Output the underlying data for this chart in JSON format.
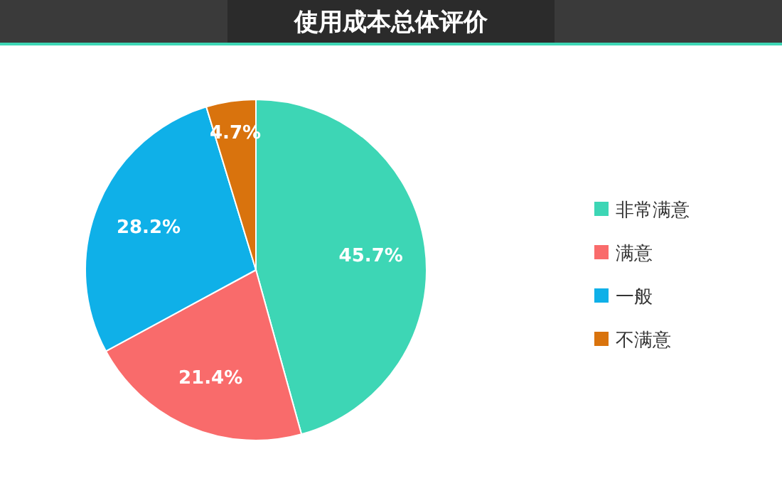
{
  "chart_data": {
    "type": "pie",
    "title": "使用成本总体评价",
    "categories": [
      "非常满意",
      "满意",
      "一般",
      "不满意"
    ],
    "values": [
      45.7,
      21.4,
      28.2,
      4.7
    ],
    "colors": [
      "#3dd6b5",
      "#f96b6b",
      "#0fb0e8",
      "#d9730d"
    ],
    "value_labels": [
      "45.7%",
      "21.4%",
      "28.2%",
      "4.7%"
    ],
    "legend": "right"
  }
}
